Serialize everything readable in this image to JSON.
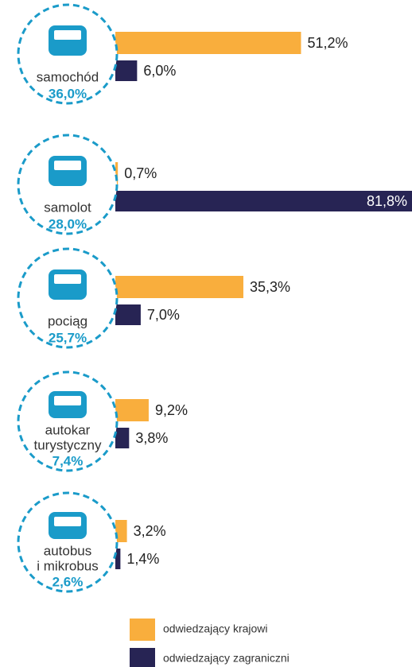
{
  "chart_data": {
    "type": "bar",
    "categories": [
      [
        "samochód"
      ],
      [
        "samolot"
      ],
      [
        "pociąg"
      ],
      [
        "autokar",
        "turystyczny"
      ],
      [
        "autobus",
        "i mikrobus"
      ]
    ],
    "category_totals": [
      "36,0%",
      "28,0%",
      "25,7%",
      "7,4%",
      "2,6%"
    ],
    "series": [
      {
        "name": "odwiedzający krajowi",
        "color": "#f9ae3d",
        "values": [
          51.2,
          0.7,
          35.3,
          9.2,
          3.2
        ],
        "value_labels": [
          "51,2%",
          "0,7%",
          "35,3%",
          "9,2%",
          "3,2%"
        ]
      },
      {
        "name": "odwiedzający zagraniczni",
        "color": "#272454",
        "values": [
          6.0,
          81.8,
          7.0,
          3.8,
          1.4
        ],
        "value_labels": [
          "6,0%",
          "81,8%",
          "7,0%",
          "3,8%",
          "1,4%"
        ]
      }
    ]
  }
}
